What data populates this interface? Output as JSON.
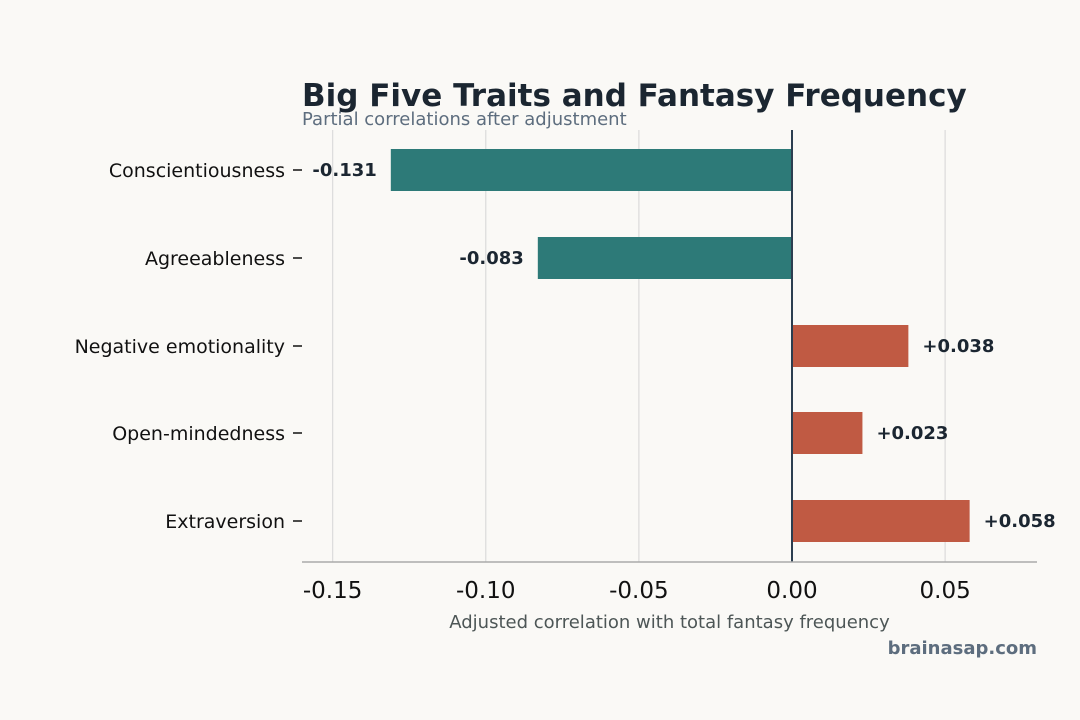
{
  "chart_data": {
    "type": "bar",
    "orientation": "horizontal",
    "title": "Big Five Traits and Fantasy Frequency",
    "subtitle": "Partial correlations after adjustment",
    "xlabel": "Adjusted correlation with total fantasy frequency",
    "ylabel": "",
    "categories": [
      "Conscientiousness",
      "Agreeableness",
      "Negative emotionality",
      "Open-mindedness",
      "Extraversion"
    ],
    "values": [
      -0.131,
      -0.083,
      0.038,
      0.023,
      0.058
    ],
    "data_labels": [
      "-0.131",
      "-0.083",
      "+0.038",
      "+0.023",
      "+0.058"
    ],
    "xlim": [
      -0.16,
      0.08
    ],
    "xticks": [
      -0.15,
      -0.1,
      -0.05,
      0.0,
      0.05
    ],
    "xtick_labels": [
      "-0.15",
      "-0.10",
      "-0.05",
      "0.00",
      "0.05"
    ],
    "grid": "vertical",
    "legend": "none",
    "source": "brainasap.com"
  },
  "colors": {
    "background": "#faf9f6",
    "negative": "#2d7a78",
    "positive": "#c05a43",
    "title": "#1b2631",
    "subtitle": "#5d6d7e",
    "axis_text": "#111111",
    "xlabel": "#4d5656",
    "data_label": "#1b2631",
    "grid": "#dddddd",
    "zero_line": "#2c3e50",
    "axis_line": "#aaaaaa",
    "source": "#5d6d7e"
  }
}
